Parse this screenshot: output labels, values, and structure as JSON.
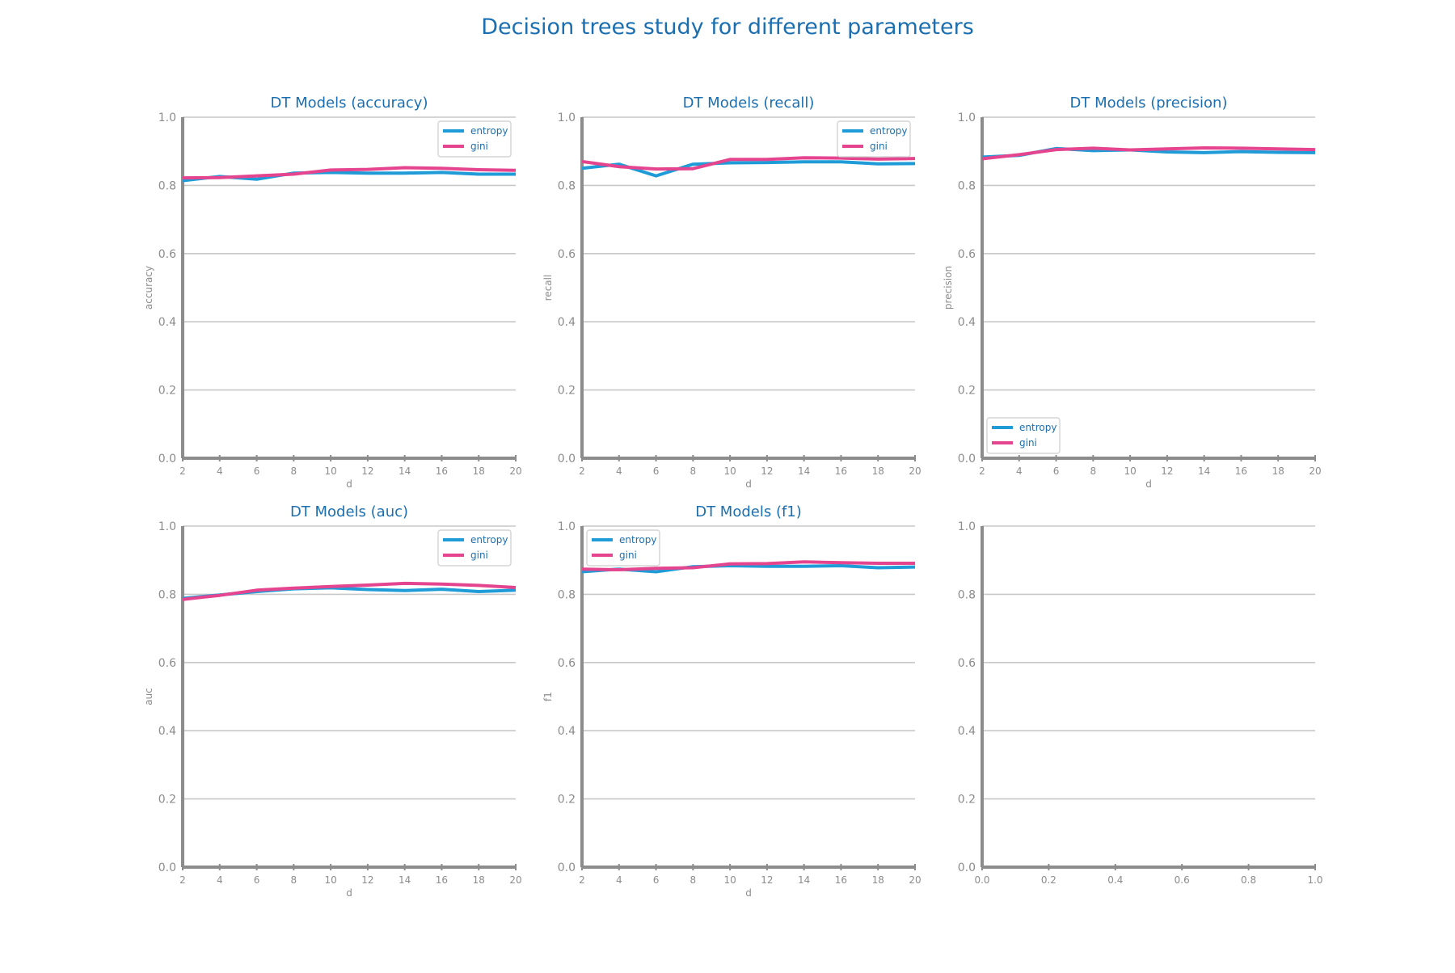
{
  "figure": {
    "title": "Decision trees study for different parameters"
  },
  "colors": {
    "entropy": "#1f9bd7",
    "gini": "#e5458f",
    "title": "#1b6fb0",
    "axis": "#8c8c8c",
    "tick_label": "#8c8c8c",
    "grid": "#c8c8c8",
    "legend_text": "#1b6fb0"
  },
  "chart_data": [
    {
      "type": "line",
      "title": "DT Models (accuracy)",
      "xlabel": "d",
      "ylabel": "accuracy",
      "x": [
        2,
        4,
        6,
        8,
        10,
        12,
        14,
        16,
        18,
        20
      ],
      "xlim": [
        2,
        20
      ],
      "ylim": [
        0,
        1
      ],
      "xticks": [
        "2",
        "4",
        "6",
        "8",
        "10",
        "12",
        "14",
        "16",
        "18",
        "20"
      ],
      "yticks": [
        "0.0",
        "0.2",
        "0.4",
        "0.6",
        "0.8",
        "1.0"
      ],
      "grid": "horizontal",
      "legend_position": "top-right",
      "series": [
        {
          "name": "entropy",
          "values": [
            0.814,
            0.826,
            0.818,
            0.836,
            0.838,
            0.836,
            0.836,
            0.838,
            0.833,
            0.833
          ]
        },
        {
          "name": "gini",
          "values": [
            0.822,
            0.823,
            0.828,
            0.833,
            0.845,
            0.847,
            0.852,
            0.85,
            0.846,
            0.844
          ]
        }
      ]
    },
    {
      "type": "line",
      "title": "DT Models (recall)",
      "xlabel": "d",
      "ylabel": "recall",
      "x": [
        2,
        4,
        6,
        8,
        10,
        12,
        14,
        16,
        18,
        20
      ],
      "xlim": [
        2,
        20
      ],
      "ylim": [
        0,
        1
      ],
      "xticks": [
        "2",
        "4",
        "6",
        "8",
        "10",
        "12",
        "14",
        "16",
        "18",
        "20"
      ],
      "yticks": [
        "0.0",
        "0.2",
        "0.4",
        "0.6",
        "0.8",
        "1.0"
      ],
      "grid": "horizontal",
      "legend_position": "top-right",
      "series": [
        {
          "name": "entropy",
          "values": [
            0.85,
            0.862,
            0.828,
            0.862,
            0.866,
            0.867,
            0.869,
            0.869,
            0.863,
            0.864
          ]
        },
        {
          "name": "gini",
          "values": [
            0.87,
            0.855,
            0.848,
            0.849,
            0.876,
            0.876,
            0.881,
            0.88,
            0.877,
            0.879
          ]
        }
      ]
    },
    {
      "type": "line",
      "title": "DT Models (precision)",
      "xlabel": "d",
      "ylabel": "precision",
      "x": [
        2,
        4,
        6,
        8,
        10,
        12,
        14,
        16,
        18,
        20
      ],
      "xlim": [
        2,
        20
      ],
      "ylim": [
        0,
        1
      ],
      "xticks": [
        "2",
        "4",
        "6",
        "8",
        "10",
        "12",
        "14",
        "16",
        "18",
        "20"
      ],
      "yticks": [
        "0.0",
        "0.2",
        "0.4",
        "0.6",
        "0.8",
        "1.0"
      ],
      "grid": "horizontal",
      "legend_position": "bottom-left",
      "series": [
        {
          "name": "entropy",
          "values": [
            0.883,
            0.888,
            0.908,
            0.902,
            0.904,
            0.898,
            0.896,
            0.899,
            0.897,
            0.896
          ]
        },
        {
          "name": "gini",
          "values": [
            0.878,
            0.89,
            0.905,
            0.909,
            0.904,
            0.907,
            0.91,
            0.909,
            0.907,
            0.905
          ]
        }
      ]
    },
    {
      "type": "line",
      "title": "DT Models (auc)",
      "xlabel": "d",
      "ylabel": "auc",
      "x": [
        2,
        4,
        6,
        8,
        10,
        12,
        14,
        16,
        18,
        20
      ],
      "xlim": [
        2,
        20
      ],
      "ylim": [
        0,
        1
      ],
      "xticks": [
        "2",
        "4",
        "6",
        "8",
        "10",
        "12",
        "14",
        "16",
        "18",
        "20"
      ],
      "yticks": [
        "0.0",
        "0.2",
        "0.4",
        "0.6",
        "0.8",
        "1.0"
      ],
      "grid": "horizontal",
      "legend_position": "top-right",
      "series": [
        {
          "name": "entropy",
          "values": [
            0.788,
            0.798,
            0.808,
            0.816,
            0.819,
            0.814,
            0.811,
            0.815,
            0.808,
            0.812
          ]
        },
        {
          "name": "gini",
          "values": [
            0.785,
            0.797,
            0.812,
            0.818,
            0.823,
            0.827,
            0.832,
            0.83,
            0.826,
            0.82
          ]
        }
      ]
    },
    {
      "type": "line",
      "title": "DT Models (f1)",
      "xlabel": "d",
      "ylabel": "f1",
      "x": [
        2,
        4,
        6,
        8,
        10,
        12,
        14,
        16,
        18,
        20
      ],
      "xlim": [
        2,
        20
      ],
      "ylim": [
        0,
        1
      ],
      "xticks": [
        "2",
        "4",
        "6",
        "8",
        "10",
        "12",
        "14",
        "16",
        "18",
        "20"
      ],
      "yticks": [
        "0.0",
        "0.2",
        "0.4",
        "0.6",
        "0.8",
        "1.0"
      ],
      "grid": "horizontal",
      "legend_position": "top-left",
      "series": [
        {
          "name": "entropy",
          "values": [
            0.866,
            0.874,
            0.866,
            0.881,
            0.884,
            0.882,
            0.882,
            0.884,
            0.878,
            0.88
          ]
        },
        {
          "name": "gini",
          "values": [
            0.874,
            0.872,
            0.876,
            0.878,
            0.889,
            0.89,
            0.895,
            0.893,
            0.891,
            0.891
          ]
        }
      ]
    },
    {
      "type": "line",
      "title": "",
      "xlabel": "",
      "ylabel": "",
      "xlim": [
        0,
        1
      ],
      "ylim": [
        0,
        1
      ],
      "xticks": [
        "0.0",
        "0.2",
        "0.4",
        "0.6",
        "0.8",
        "1.0"
      ],
      "yticks": [
        "0.0",
        "0.2",
        "0.4",
        "0.6",
        "0.8",
        "1.0"
      ],
      "grid": "horizontal",
      "series": []
    }
  ]
}
